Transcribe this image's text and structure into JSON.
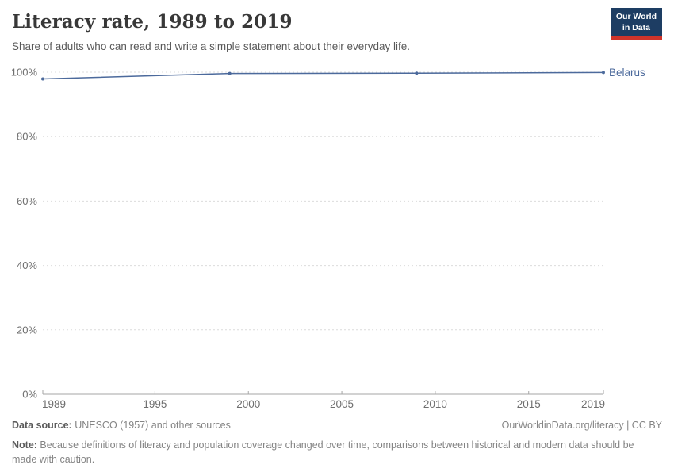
{
  "header": {
    "title": "Literacy rate, 1989 to 2019",
    "subtitle": "Share of adults who can read and write a simple statement about their everyday life."
  },
  "logo": {
    "line1": "Our World",
    "line2": "in Data",
    "bg_color": "#1d3d63",
    "stripe_color": "#d0342a"
  },
  "chart_data": {
    "type": "line",
    "title": "Literacy rate, 1989 to 2019",
    "xlabel": "",
    "ylabel": "",
    "xlim": [
      1989,
      2019
    ],
    "ylim": [
      0,
      100
    ],
    "x_ticks": [
      1989,
      1995,
      2000,
      2005,
      2010,
      2015,
      2019
    ],
    "y_ticks": [
      0,
      20,
      40,
      60,
      80,
      100
    ],
    "y_tick_suffix": "%",
    "grid": "horizontal-dashed",
    "legend_position": "end-of-line-label",
    "series": [
      {
        "name": "Belarus",
        "color": "#4c6a9c",
        "x": [
          1989,
          1999,
          2009,
          2019
        ],
        "y": [
          97.9,
          99.6,
          99.7,
          99.9
        ]
      }
    ]
  },
  "footer": {
    "datasource_label": "Data source:",
    "datasource_value": " UNESCO (1957) and other sources",
    "link": "OurWorldinData.org/literacy | CC BY",
    "note_label": "Note:",
    "note_value": " Because definitions of literacy and population coverage changed over time, comparisons between historical and modern data should be made with caution."
  },
  "colors": {
    "accent_line": "#4c6a9c",
    "grid": "#dcdcdc",
    "axis": "#a6a6a6",
    "tick_text": "#6e6e6e",
    "title_text": "#383838"
  }
}
